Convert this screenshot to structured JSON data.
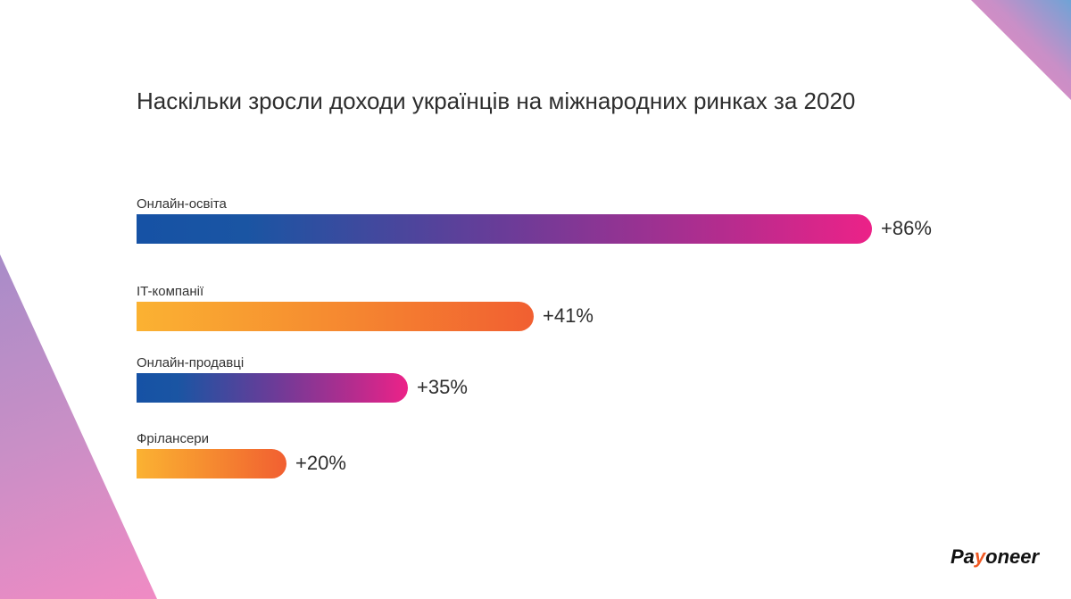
{
  "title": "Наскільки зросли доходи українців на міжнародних ринках за 2020",
  "logo": {
    "pre": "Pa",
    "y": "y",
    "post": "oneer"
  },
  "chart_data": {
    "type": "bar",
    "orientation": "horizontal",
    "title": "Наскільки зросли доходи українців на міжнародних ринках за 2020",
    "categories": [
      "Онлайн-освіта",
      "IT-компанії",
      "Онлайн-продавці",
      "Фрілансери"
    ],
    "values": [
      86,
      41,
      35,
      20
    ],
    "value_labels": [
      "+86%",
      "+41%",
      "+35%",
      "+20%"
    ],
    "colors": [
      "blue-magenta gradient",
      "orange gradient",
      "blue-magenta gradient",
      "orange gradient"
    ],
    "unit": "%"
  }
}
